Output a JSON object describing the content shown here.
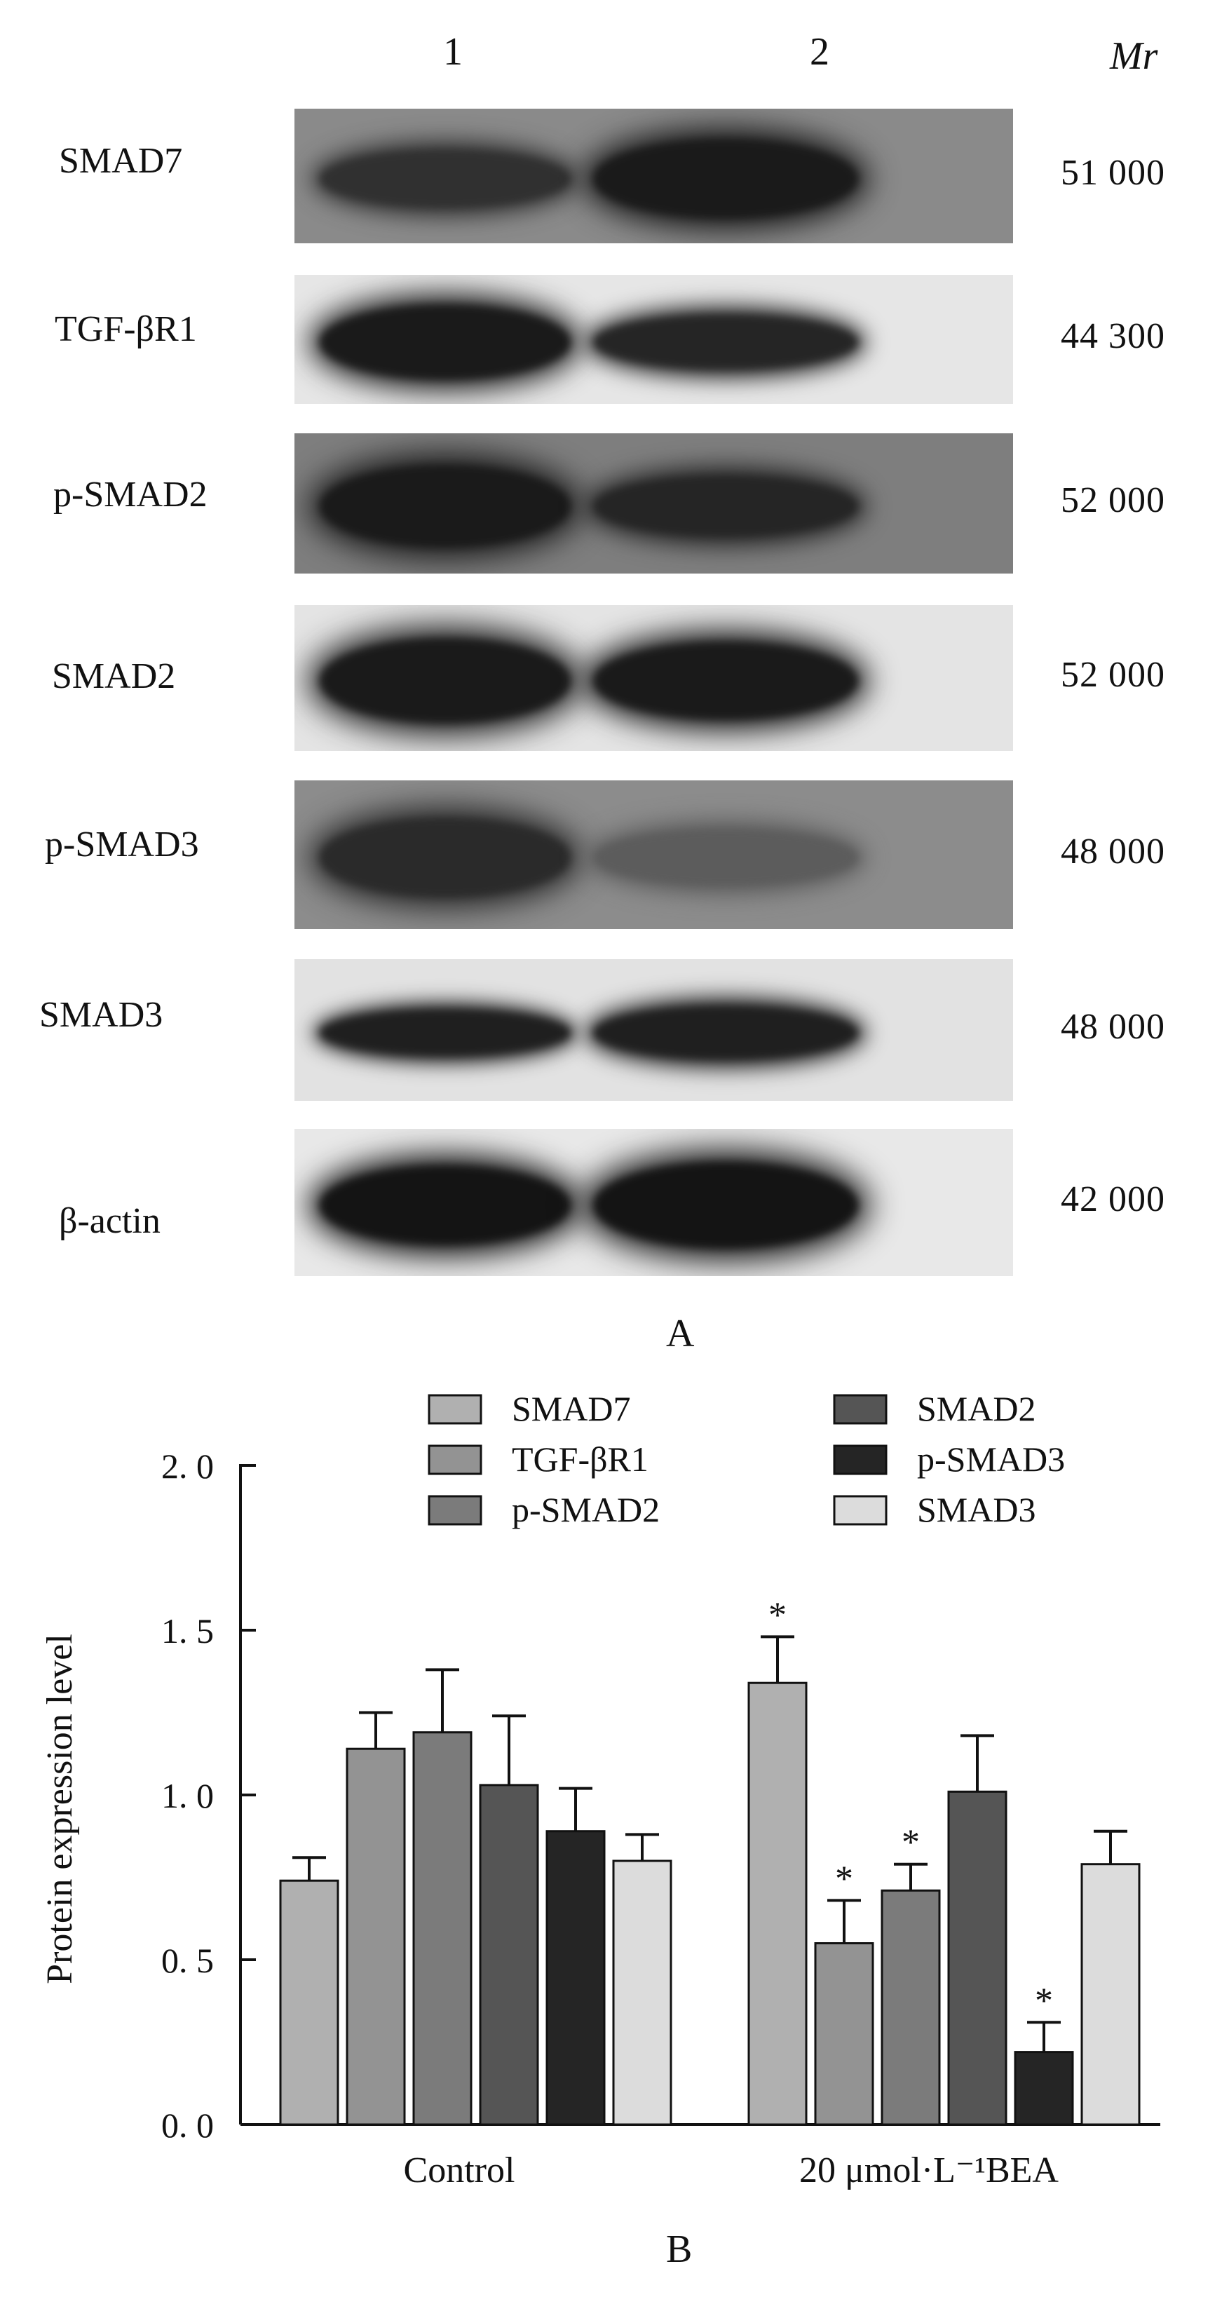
{
  "panel_a": {
    "lanes": [
      "1",
      "2"
    ],
    "mr_header": "Mr",
    "blots": [
      {
        "label": "SMAD7",
        "mr": "51  000",
        "background": "#8a8a8a",
        "band_intensity": [
          0.75,
          0.95
        ],
        "band_thickness": [
          0.45,
          0.6
        ]
      },
      {
        "label": "TGF-βR1",
        "mr": "44  300",
        "background": "#e6e6e6",
        "band_intensity": [
          0.95,
          0.85
        ],
        "band_thickness": [
          0.6,
          0.45
        ]
      },
      {
        "label": "p-SMAD2",
        "mr": "52  000",
        "background": "#7e7e7e",
        "band_intensity": [
          0.95,
          0.85
        ],
        "band_thickness": [
          0.6,
          0.45
        ]
      },
      {
        "label": "SMAD2",
        "mr": "52  000",
        "background": "#e4e4e4",
        "band_intensity": [
          0.95,
          0.95
        ],
        "band_thickness": [
          0.6,
          0.55
        ]
      },
      {
        "label": "p-SMAD3",
        "mr": "48  000",
        "background": "#8c8c8c",
        "band_intensity": [
          0.8,
          0.35
        ],
        "band_thickness": [
          0.55,
          0.4
        ]
      },
      {
        "label": "SMAD3",
        "mr": "48  000",
        "background": "#e2e2e2",
        "band_intensity": [
          0.9,
          0.9
        ],
        "band_thickness": [
          0.35,
          0.4
        ]
      },
      {
        "label": "β-actin",
        "mr": "42  000",
        "background": "#e8e8e8",
        "band_intensity": [
          1.0,
          1.0
        ],
        "band_thickness": [
          0.55,
          0.6
        ]
      }
    ],
    "panel_label": "A"
  },
  "chart_data": {
    "type": "bar",
    "categories": [
      "Control",
      "20 μmol·L⁻¹BEA"
    ],
    "ylabel": "Protein expression level",
    "ylim": [
      0,
      2.0
    ],
    "yticks": [
      "0. 0",
      "0. 5",
      "1. 0",
      "1. 5",
      "2. 0"
    ],
    "ytick_values": [
      0,
      0.5,
      1.0,
      1.5,
      2.0
    ],
    "legend_position": "top",
    "series": [
      {
        "name": "SMAD7",
        "color": "#b0b0b0",
        "values": [
          0.74,
          1.34
        ],
        "errors": [
          0.07,
          0.14
        ],
        "significant": [
          false,
          true
        ]
      },
      {
        "name": "TGF-βR1",
        "color": "#939393",
        "values": [
          1.14,
          0.55
        ],
        "errors": [
          0.11,
          0.13
        ],
        "significant": [
          false,
          true
        ]
      },
      {
        "name": "p-SMAD2",
        "color": "#7b7b7b",
        "values": [
          1.19,
          0.71
        ],
        "errors": [
          0.19,
          0.08
        ],
        "significant": [
          false,
          true
        ]
      },
      {
        "name": "SMAD2",
        "color": "#555555",
        "values": [
          1.03,
          1.01
        ],
        "errors": [
          0.21,
          0.17
        ],
        "significant": [
          false,
          false
        ]
      },
      {
        "name": "p-SMAD3",
        "color": "#252525",
        "values": [
          0.89,
          0.22
        ],
        "errors": [
          0.13,
          0.09
        ],
        "significant": [
          false,
          true
        ]
      },
      {
        "name": "SMAD3",
        "color": "#dcdcdc",
        "values": [
          0.8,
          0.79
        ],
        "errors": [
          0.08,
          0.1
        ],
        "significant": [
          false,
          false
        ]
      }
    ],
    "significance_marker": "*"
  },
  "panel_b": {
    "panel_label": "B"
  }
}
